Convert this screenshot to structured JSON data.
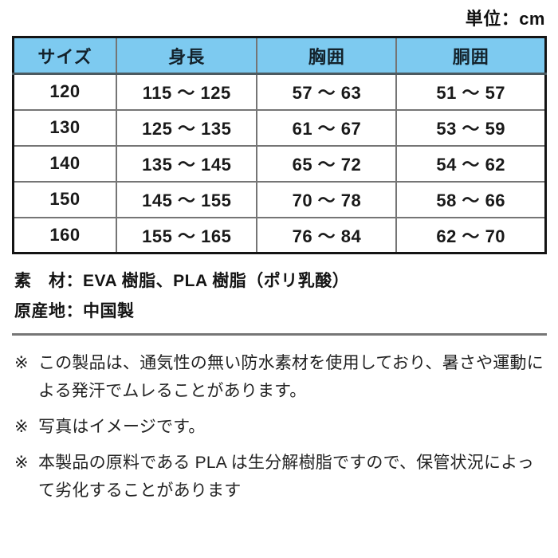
{
  "unit_label": "単位：cm",
  "size_table": {
    "header_bg": "#7dcaf0",
    "headers": [
      "サイズ",
      "身長",
      "胸囲",
      "胴囲"
    ],
    "rows": [
      [
        "120",
        "115 ～ 125",
        "57 ～ 63",
        "51 ～ 57"
      ],
      [
        "130",
        "125 ～ 135",
        "61 ～ 67",
        "53 ～ 59"
      ],
      [
        "140",
        "135 ～ 145",
        "65 ～ 72",
        "54 ～ 62"
      ],
      [
        "150",
        "145 ～ 155",
        "70 ～ 78",
        "58 ～ 66"
      ],
      [
        "160",
        "155 ～ 165",
        "76 ～ 84",
        "62 ～ 70"
      ]
    ]
  },
  "product_info": {
    "material": "素　材：EVA 樹脂、PLA 樹脂（ポリ乳酸）",
    "origin": "原産地：中国製"
  },
  "notes": {
    "marker": "※",
    "items": [
      "この製品は、通気性の無い防水素材を使用しており、暑さや運動による発汗でムレることがあります。",
      "写真はイメージです。",
      "本製品の原料である PLA は生分解樹脂ですので、保管状況によって劣化することがあります"
    ]
  }
}
